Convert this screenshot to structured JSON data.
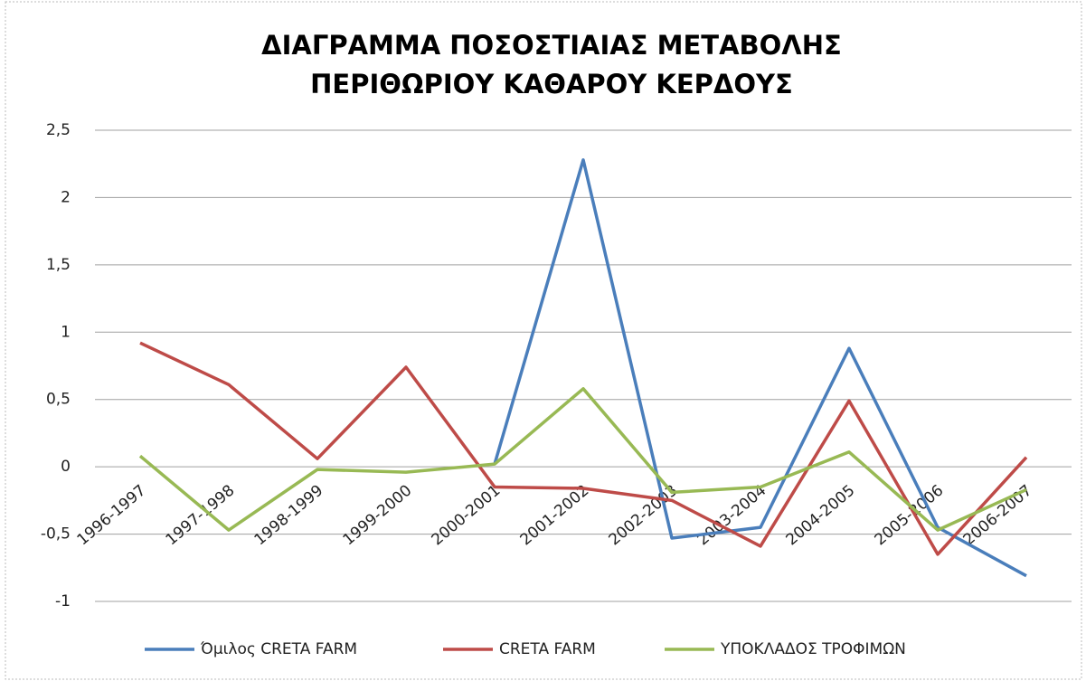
{
  "chart_data": {
    "type": "line",
    "title": [
      "ΔΙΑΓΡΑΜΜΑ ΠΟΣΟΣΤΙΑΙΑΣ ΜΕΤΑΒΟΛΗΣ",
      "ΠΕΡΙΘΩΡΙΟΥ ΚΑΘΑΡΟΥ ΚΕΡΔΟΥΣ"
    ],
    "categories": [
      "1996-1997",
      "1997-1998",
      "1998-1999",
      "1999-2000",
      "2000-2001",
      "2001-2002",
      "2002-2003",
      "2003-2004",
      "2004-2005",
      "2005-2006",
      "2006-2007"
    ],
    "series": [
      {
        "name": "Όμιλος CRETA FARM",
        "color": "#4a7ebb",
        "values": [
          null,
          null,
          null,
          null,
          0.02,
          2.28,
          -0.53,
          -0.45,
          0.88,
          -0.45,
          -0.81
        ]
      },
      {
        "name": "CRETA FARM",
        "color": "#be4b48",
        "values": [
          0.92,
          0.61,
          0.06,
          0.74,
          -0.15,
          -0.16,
          -0.25,
          -0.59,
          0.49,
          -0.65,
          0.07
        ]
      },
      {
        "name": "ΥΠΟΚΛΑΔΟΣ ΤΡΟΦΙΜΩΝ",
        "color": "#98b954",
        "values": [
          0.08,
          -0.47,
          -0.02,
          -0.04,
          0.02,
          0.58,
          -0.19,
          -0.15,
          0.11,
          -0.47,
          -0.17
        ]
      }
    ],
    "ylim": [
      -1,
      2.5
    ],
    "yticks": [
      {
        "value": -1,
        "label": "-1"
      },
      {
        "value": -0.5,
        "label": "-0,5"
      },
      0,
      {
        "value": 0.5,
        "label": "0,5"
      },
      1,
      {
        "value": 1.5,
        "label": "1,5"
      },
      2,
      {
        "value": 2.5,
        "label": "2,5"
      }
    ],
    "grid": true,
    "legend": "bottom"
  }
}
